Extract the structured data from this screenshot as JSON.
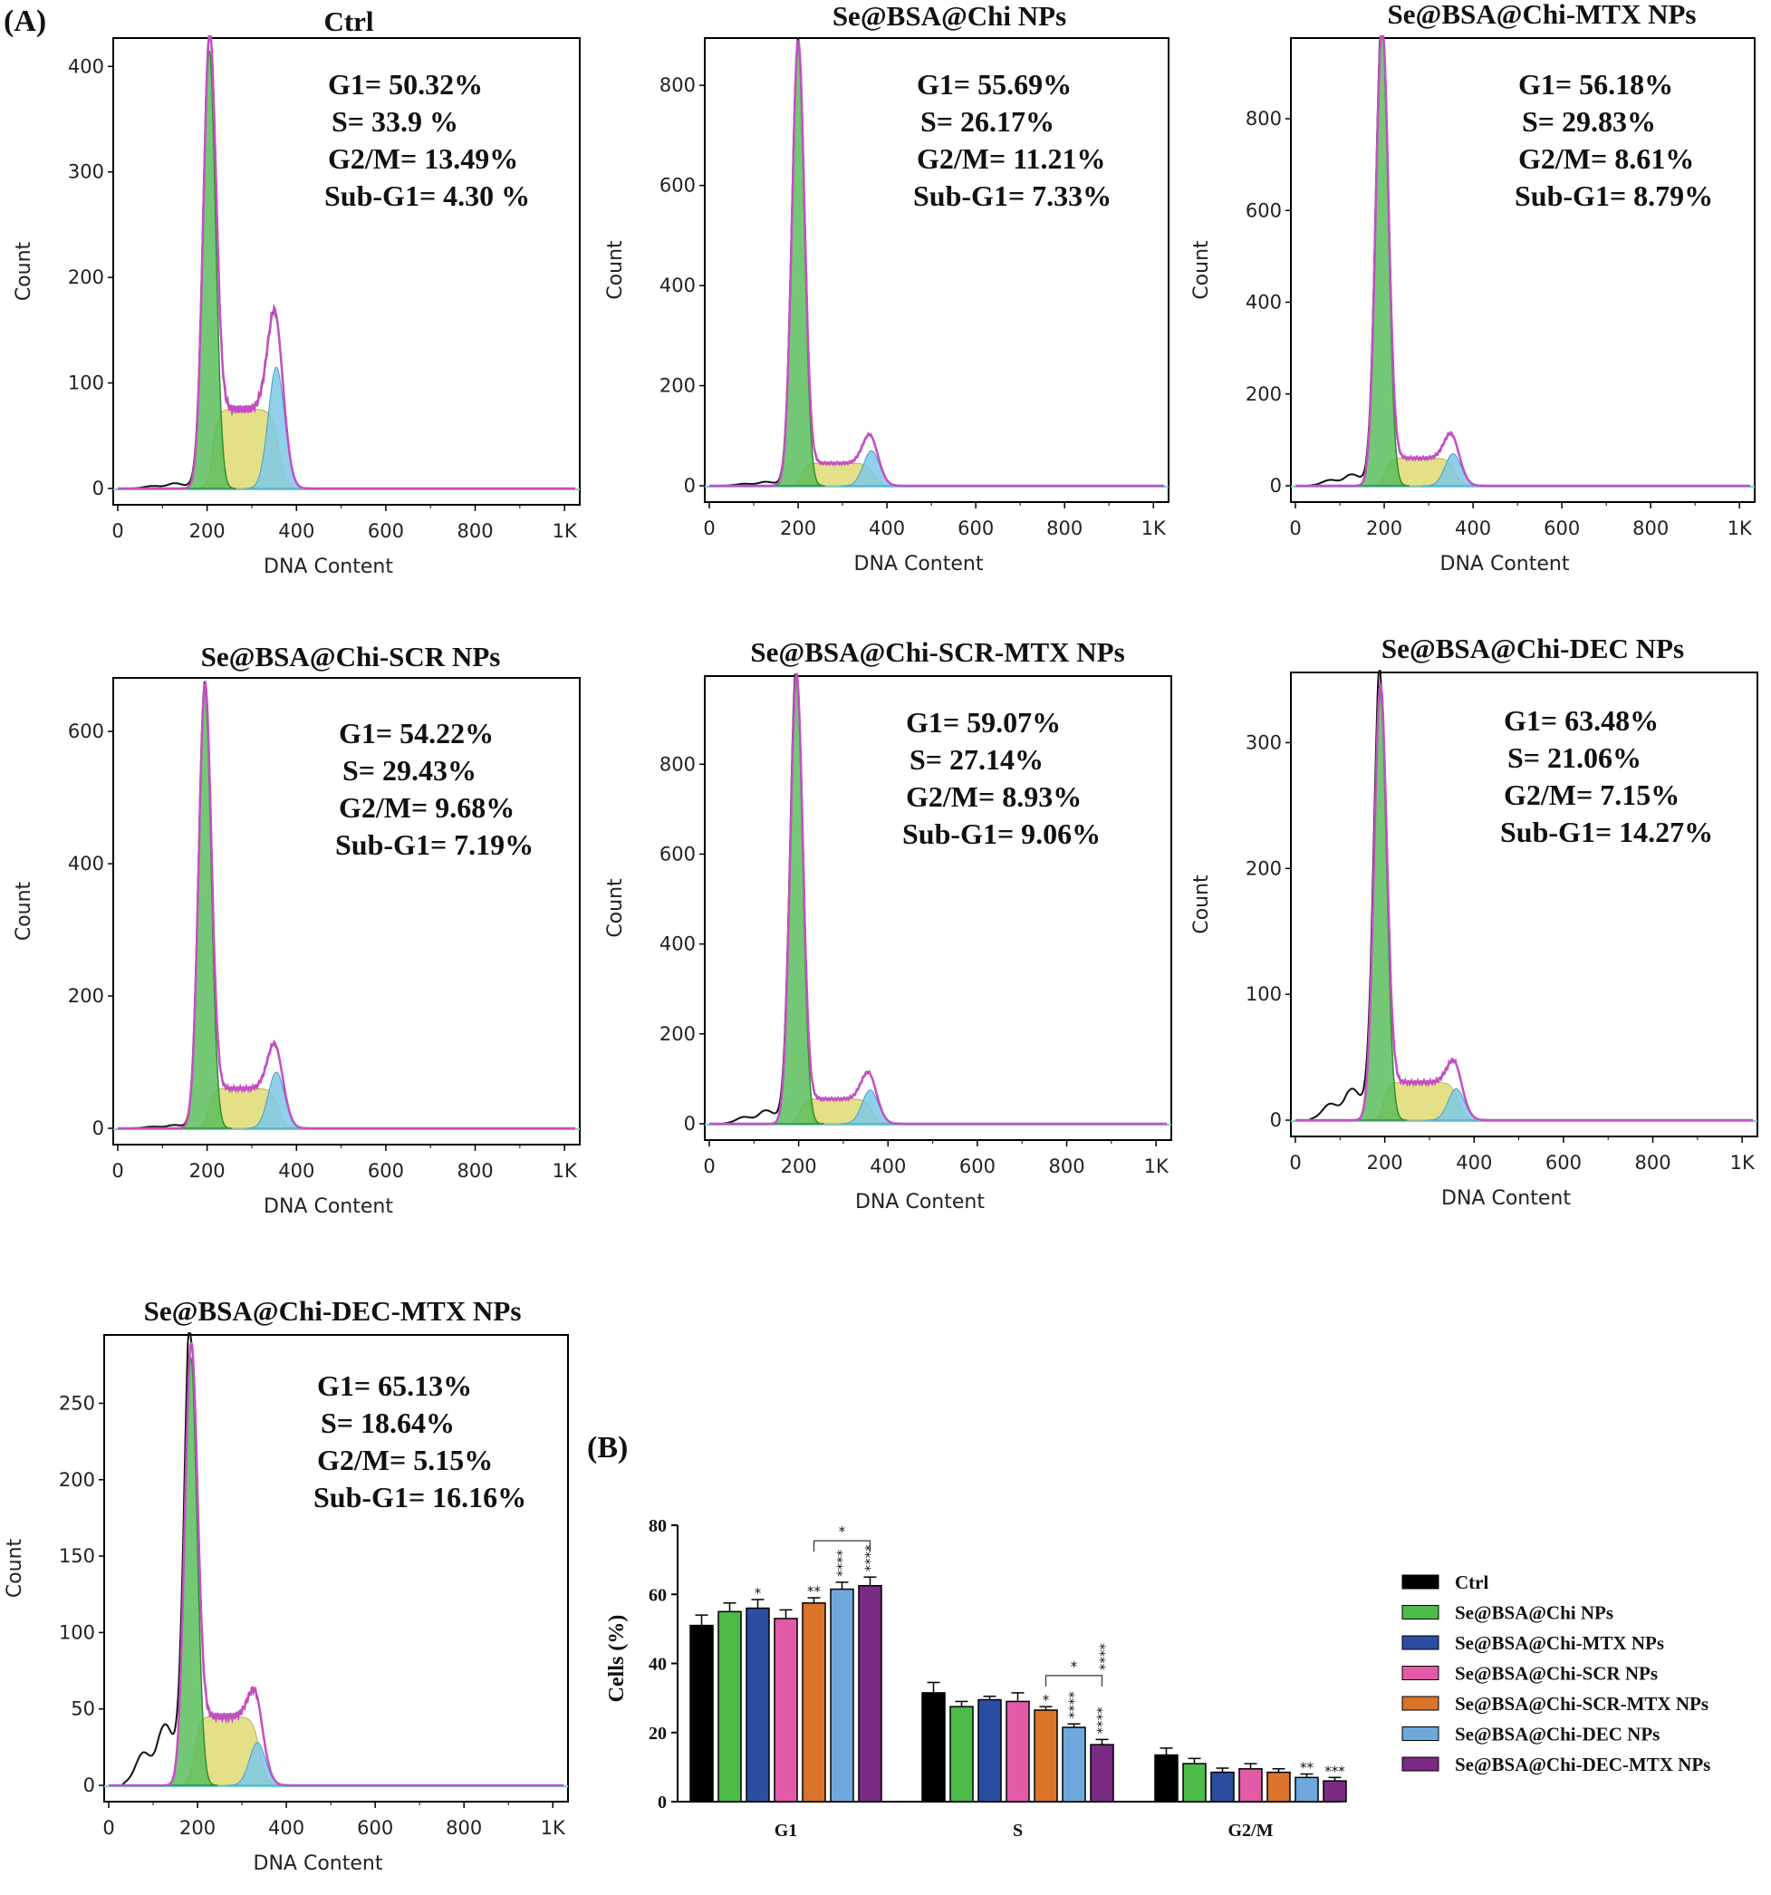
{
  "chart_data": [
    {
      "panel": "(A)",
      "type": "histogram",
      "title": "Ctrl",
      "xlabel": "DNA Content",
      "ylabel": "Count",
      "xlim": [
        0,
        1024
      ],
      "ylim": [
        0,
        420
      ],
      "xticks": [
        0,
        200,
        400,
        600,
        800,
        1000
      ],
      "xtick_labels": [
        "0",
        "200",
        "400",
        "600",
        "800",
        "1K"
      ],
      "yticks": [
        0,
        100,
        200,
        300,
        400
      ],
      "g1_peak": {
        "x": 205,
        "count": 415
      },
      "g2_peak": {
        "x": 355,
        "count": 115
      },
      "s_level": 75,
      "sub_g1_level": 5,
      "stats": [
        "G1= 50.32%",
        "S= 33.9 %",
        "G2/M= 13.49%",
        "Sub-G1= 4.30 %"
      ]
    },
    {
      "type": "histogram",
      "title": "Se@BSA@Chi NPs",
      "xlabel": "DNA Content",
      "ylabel": "Count",
      "xlim": [
        0,
        1024
      ],
      "ylim": [
        0,
        880
      ],
      "xticks": [
        0,
        200,
        400,
        600,
        800,
        1000
      ],
      "xtick_labels": [
        "0",
        "200",
        "400",
        "600",
        "800",
        "1K"
      ],
      "yticks": [
        0,
        200,
        400,
        600,
        800
      ],
      "g1_peak": {
        "x": 200,
        "count": 880
      },
      "g2_peak": {
        "x": 365,
        "count": 70
      },
      "s_level": 45,
      "sub_g1_level": 8,
      "stats": [
        "G1= 55.69%",
        "S= 26.17%",
        "G2/M= 11.21%",
        "Sub-G1= 7.33%"
      ]
    },
    {
      "type": "histogram",
      "title": "Se@BSA@Chi-MTX NPs",
      "xlabel": "DNA Content",
      "ylabel": "Count",
      "xlim": [
        0,
        1024
      ],
      "ylim": [
        0,
        960
      ],
      "xticks": [
        0,
        200,
        400,
        600,
        800,
        1000
      ],
      "xtick_labels": [
        "0",
        "200",
        "400",
        "600",
        "800",
        "1K"
      ],
      "yticks": [
        0,
        200,
        400,
        600,
        800
      ],
      "g1_peak": {
        "x": 195,
        "count": 1000
      },
      "g2_peak": {
        "x": 355,
        "count": 70
      },
      "s_level": 60,
      "sub_g1_level": 25,
      "stats": [
        "G1= 56.18%",
        "S= 29.83%",
        "G2/M= 8.61%",
        "Sub-G1= 8.79%"
      ]
    },
    {
      "type": "histogram",
      "title": "Se@BSA@Chi-SCR NPs",
      "xlabel": "DNA Content",
      "ylabel": "Count",
      "xlim": [
        0,
        1024
      ],
      "ylim": [
        0,
        670
      ],
      "xticks": [
        0,
        200,
        400,
        600,
        800,
        1000
      ],
      "xtick_labels": [
        "0",
        "200",
        "400",
        "600",
        "800",
        "1K"
      ],
      "yticks": [
        0,
        200,
        400,
        600
      ],
      "g1_peak": {
        "x": 195,
        "count": 660
      },
      "g2_peak": {
        "x": 355,
        "count": 85
      },
      "s_level": 60,
      "sub_g1_level": 5,
      "stats": [
        "G1= 54.22%",
        "S= 29.43%",
        "G2/M= 9.68%",
        "Sub-G1= 7.19%"
      ]
    },
    {
      "type": "histogram",
      "title": "Se@BSA@Chi-SCR-MTX NPs",
      "xlabel": "DNA Content",
      "ylabel": "Count",
      "xlim": [
        0,
        1024
      ],
      "ylim": [
        0,
        980
      ],
      "xticks": [
        0,
        200,
        400,
        600,
        800,
        1000
      ],
      "xtick_labels": [
        "0",
        "200",
        "400",
        "600",
        "800",
        "1K"
      ],
      "yticks": [
        0,
        200,
        400,
        600,
        800
      ],
      "g1_peak": {
        "x": 195,
        "count": 990
      },
      "g2_peak": {
        "x": 360,
        "count": 75
      },
      "s_level": 55,
      "sub_g1_level": 30,
      "stats": [
        "G1= 59.07%",
        "S= 27.14%",
        "G2/M= 8.93%",
        "Sub-G1= 9.06%"
      ]
    },
    {
      "type": "histogram",
      "title": "Se@BSA@Chi-DEC NPs",
      "xlabel": "DNA Content",
      "ylabel": "Count",
      "xlim": [
        0,
        1024
      ],
      "ylim": [
        0,
        350
      ],
      "xticks": [
        0,
        200,
        400,
        600,
        800,
        1000
      ],
      "xtick_labels": [
        "0",
        "200",
        "400",
        "600",
        "800",
        "1K"
      ],
      "yticks": [
        0,
        100,
        200,
        300
      ],
      "g1_peak": {
        "x": 190,
        "count": 340
      },
      "g2_peak": {
        "x": 360,
        "count": 25
      },
      "s_level": 30,
      "sub_g1_level": 25,
      "stats": [
        "G1= 63.48%",
        "S= 21.06%",
        "G2/M= 7.15%",
        "Sub-G1= 14.27%"
      ]
    },
    {
      "type": "histogram",
      "title": "Se@BSA@Chi-DEC-MTX NPs",
      "xlabel": "DNA Content",
      "ylabel": "Count",
      "xlim": [
        0,
        1024
      ],
      "ylim": [
        0,
        290
      ],
      "xticks": [
        0,
        200,
        400,
        600,
        800,
        1000
      ],
      "xtick_labels": [
        "0",
        "200",
        "400",
        "600",
        "800",
        "1K"
      ],
      "yticks": [
        0,
        50,
        100,
        150,
        200,
        250
      ],
      "g1_peak": {
        "x": 185,
        "count": 280
      },
      "g2_peak": {
        "x": 335,
        "count": 28
      },
      "s_level": 45,
      "sub_g1_level": 40,
      "stats": [
        "G1= 65.13%",
        "S= 18.64%",
        "G2/M= 5.15%",
        "Sub-G1= 16.16%"
      ]
    },
    {
      "panel": "(B)",
      "type": "bar",
      "categories": [
        "G1",
        "S",
        "G2/M"
      ],
      "ylabel": "Cells (%)",
      "ylim": [
        0,
        80
      ],
      "yticks": [
        0,
        20,
        40,
        60,
        80
      ],
      "series": [
        {
          "name": "Ctrl",
          "color": "#000000",
          "values": [
            51,
            31.5,
            13.5
          ],
          "errors": [
            3,
            3,
            2
          ],
          "sig": [
            "",
            "",
            ""
          ]
        },
        {
          "name": "Se@BSA@Chi NPs",
          "color": "#4cbb47",
          "values": [
            55,
            27.5,
            11
          ],
          "errors": [
            2.5,
            1.5,
            1.5
          ],
          "sig": [
            "",
            "",
            ""
          ]
        },
        {
          "name": "Se@BSA@Chi-MTX NPs",
          "color": "#2b4ea2",
          "values": [
            56,
            29.5,
            8.5
          ],
          "errors": [
            2.5,
            1,
            1.2
          ],
          "sig": [
            "*",
            "",
            ""
          ]
        },
        {
          "name": "Se@BSA@Chi-SCR NPs",
          "color": "#e15ba6",
          "values": [
            53,
            29,
            9.5
          ],
          "errors": [
            2.5,
            2.5,
            1.5
          ],
          "sig": [
            "",
            "",
            ""
          ]
        },
        {
          "name": "Se@BSA@Chi-SCR-MTX NPs",
          "color": "#d9742a",
          "values": [
            57.5,
            26.5,
            8.5
          ],
          "errors": [
            1.5,
            1,
            1
          ],
          "sig": [
            "**",
            "*",
            ""
          ]
        },
        {
          "name": "Se@BSA@Chi-DEC NPs",
          "color": "#6fa8dc",
          "values": [
            61.5,
            21.5,
            7
          ],
          "errors": [
            2,
            1,
            1
          ],
          "sig": [
            "****",
            "****",
            "**"
          ]
        },
        {
          "name": "Se@BSA@Chi-DEC-MTX NPs",
          "color": "#7b2a83",
          "values": [
            62.5,
            16.5,
            6
          ],
          "errors": [
            2.5,
            1.5,
            1
          ],
          "sig": [
            "****",
            "****",
            "***"
          ]
        }
      ],
      "brackets": [
        {
          "category": "G1",
          "from": "Se@BSA@Chi-SCR-MTX NPs",
          "to": "Se@BSA@Chi-DEC-MTX NPs",
          "label": "*"
        },
        {
          "category": "S",
          "from": "Se@BSA@Chi-SCR-MTX NPs",
          "to": "Se@BSA@Chi-DEC-MTX NPs",
          "label": "*"
        },
        {
          "category": "S",
          "from": "Se@BSA@Chi-SCR-MTX NPs",
          "to": "Se@BSA@Chi-DEC-MTX NPs",
          "label": "****"
        }
      ],
      "legend": "right"
    }
  ],
  "phase_colors": {
    "g1": "#5cbd5c",
    "s": "#dcd86a",
    "g2": "#7ec8e8",
    "envelope": "#c44fc4",
    "trace": "#111111"
  }
}
